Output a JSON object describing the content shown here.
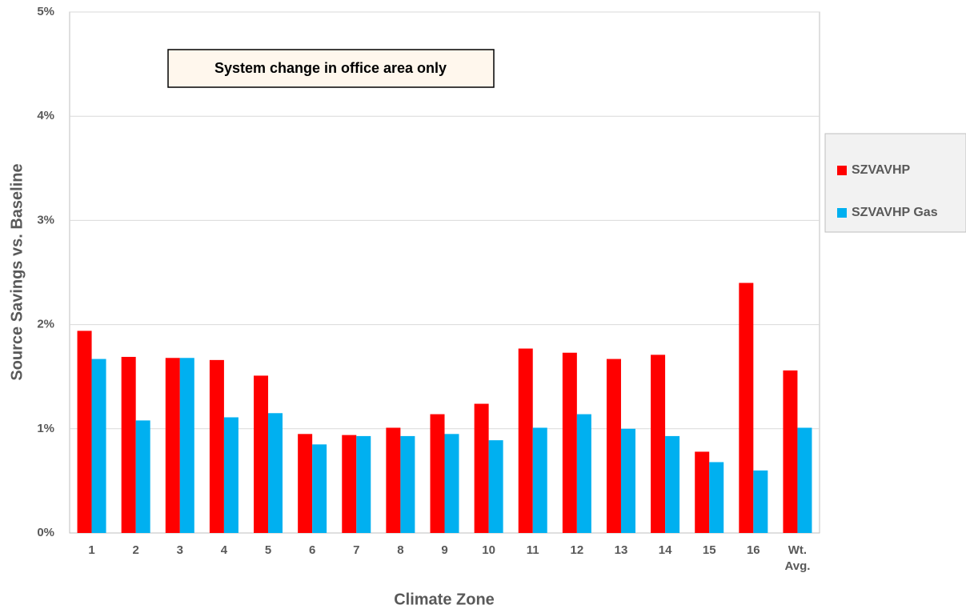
{
  "chart_data": {
    "type": "bar",
    "annotation": "System change in office area only",
    "x_label": "Climate Zone",
    "y_label": "Source Savings vs. Baseline",
    "categories": [
      "1",
      "2",
      "3",
      "4",
      "5",
      "6",
      "7",
      "8",
      "9",
      "10",
      "11",
      "12",
      "13",
      "14",
      "15",
      "16",
      "Wt. Avg."
    ],
    "series": [
      {
        "name": "SZVAVHP",
        "color": "#ff0000",
        "values": [
          1.94,
          1.69,
          1.68,
          1.66,
          1.51,
          0.95,
          0.94,
          1.01,
          1.14,
          1.24,
          1.77,
          1.73,
          1.67,
          1.71,
          0.78,
          2.4,
          1.56
        ]
      },
      {
        "name": "SZVAVHP Gas",
        "color": "#00b0f0",
        "values": [
          1.67,
          1.08,
          1.68,
          1.11,
          1.15,
          0.85,
          0.93,
          0.93,
          0.95,
          0.89,
          1.01,
          1.14,
          1.0,
          0.93,
          0.68,
          0.6,
          1.01
        ]
      }
    ],
    "ylim": [
      0,
      5
    ],
    "yticks": [
      {
        "value": 0,
        "label": "0%"
      },
      {
        "value": 1,
        "label": "1%"
      },
      {
        "value": 2,
        "label": "2%"
      },
      {
        "value": 3,
        "label": "3%"
      },
      {
        "value": 4,
        "label": "4%"
      },
      {
        "value": 5,
        "label": "5%"
      }
    ],
    "grid": true,
    "legend": "right"
  }
}
